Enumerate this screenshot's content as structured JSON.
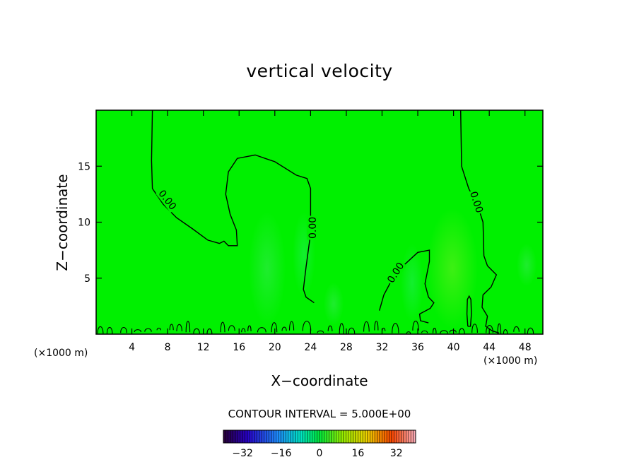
{
  "chart_data": {
    "type": "heatmap",
    "title": "vertical velocity",
    "xlabel": "X−coordinate",
    "ylabel": "Z−coordinate",
    "x_unit_left": "(×1000 m)",
    "x_unit_right": "(×1000 m)",
    "xlim": [
      0,
      50
    ],
    "ylim": [
      0,
      20
    ],
    "x_ticks": [
      4,
      8,
      12,
      16,
      20,
      24,
      28,
      32,
      36,
      40,
      44,
      48
    ],
    "y_ticks": [
      5,
      10,
      15
    ],
    "field_color": "#00f000",
    "contour_label": "0.00",
    "contour_interval_text": "CONTOUR INTERVAL = 5.000E+00",
    "colorbar": {
      "range": [
        -40,
        40
      ],
      "ticks": [
        -32,
        -16,
        0,
        16,
        32
      ],
      "tick_labels": [
        "−32",
        "−16",
        "0",
        "16",
        "32"
      ]
    },
    "contours": [
      {
        "name": "zero-contour-left",
        "points": [
          [
            6.3,
            20
          ],
          [
            6.2,
            15.5
          ],
          [
            6.3,
            13
          ],
          [
            7.5,
            11.6
          ],
          [
            9,
            10.4
          ],
          [
            10.8,
            9.4
          ],
          [
            12.5,
            8.4
          ],
          [
            13.8,
            8.1
          ],
          [
            14.3,
            8.3
          ],
          [
            14.8,
            7.9
          ],
          [
            15.8,
            7.9
          ],
          [
            15.7,
            9.3
          ],
          [
            15,
            10.7
          ],
          [
            14.5,
            12.5
          ],
          [
            14.8,
            14.5
          ],
          [
            15.8,
            15.7
          ],
          [
            17.8,
            16
          ],
          [
            20,
            15.4
          ],
          [
            22.4,
            14.2
          ],
          [
            23.6,
            13.9
          ],
          [
            24,
            13
          ],
          [
            24,
            9
          ],
          [
            23.5,
            6
          ],
          [
            23.2,
            4
          ],
          [
            23.5,
            3.3
          ],
          [
            24.4,
            2.8
          ]
        ]
      },
      {
        "name": "zero-contour-middle",
        "points": [
          [
            31.7,
            2.1
          ],
          [
            32.2,
            3.5
          ],
          [
            33,
            4.7
          ],
          [
            34.5,
            6.2
          ],
          [
            36,
            7.3
          ],
          [
            37.3,
            7.5
          ],
          [
            37.3,
            6.5
          ],
          [
            36.8,
            4.5
          ],
          [
            37.2,
            3.3
          ],
          [
            37.8,
            2.8
          ],
          [
            37.4,
            2.3
          ],
          [
            36.2,
            1.8
          ],
          [
            36.3,
            1.2
          ],
          [
            37.2,
            1
          ]
        ]
      },
      {
        "name": "zero-contour-right",
        "points": [
          [
            40.8,
            20
          ],
          [
            40.9,
            15
          ],
          [
            41.7,
            13
          ],
          [
            42.7,
            11.5
          ],
          [
            43.3,
            10
          ],
          [
            43.4,
            7
          ],
          [
            43.8,
            6.1
          ],
          [
            44.8,
            5.3
          ],
          [
            44.2,
            4.2
          ],
          [
            43.3,
            3.5
          ],
          [
            43.2,
            2.4
          ],
          [
            43.8,
            1.6
          ],
          [
            43.6,
            0.7
          ],
          [
            44.3,
            0.3
          ],
          [
            45.1,
            0.1
          ]
        ]
      },
      {
        "name": "small-closed-contour-41",
        "points": [
          [
            41.6,
            0.7
          ],
          [
            41.5,
            1.8
          ],
          [
            41.55,
            3.1
          ],
          [
            41.75,
            3.4
          ],
          [
            41.95,
            3.1
          ],
          [
            42,
            1.8
          ],
          [
            41.9,
            0.7
          ],
          [
            41.6,
            0.7
          ]
        ]
      }
    ]
  }
}
